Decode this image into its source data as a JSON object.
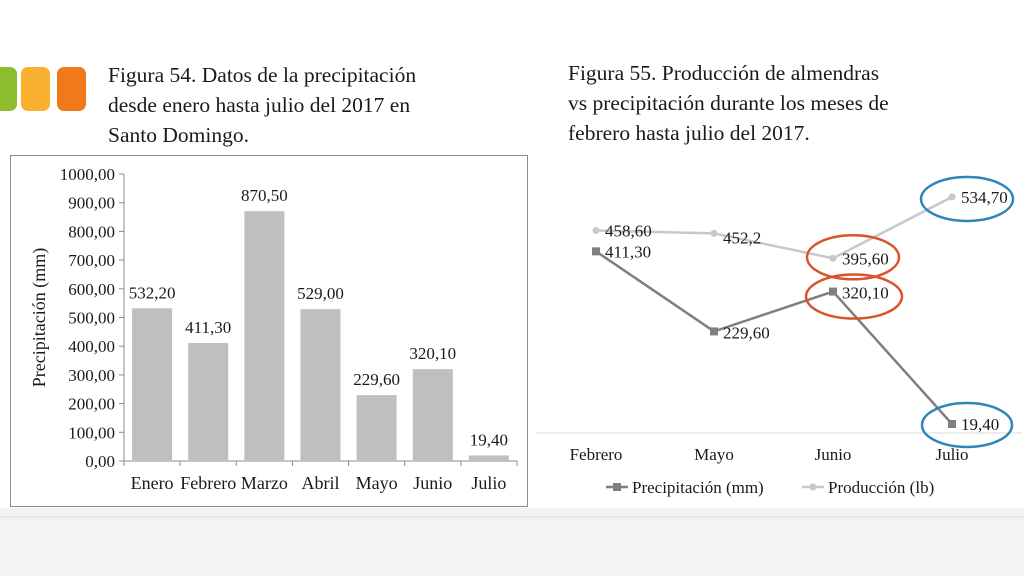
{
  "swatch_colors": [
    "#8dbd2c",
    "#f9b02f",
    "#f07a1a"
  ],
  "caption_left": [
    "Figura 54. Datos de la precipitación",
    "desde enero hasta julio del 2017 en",
    "Santo Domingo."
  ],
  "caption_right": [
    "Figura 55. Producción de almendras",
    "vs precipitación durante los meses de",
    "febrero hasta julio del 2017."
  ],
  "chart_data": [
    {
      "type": "bar",
      "title": "",
      "xlabel": "",
      "ylabel": "Precipitación (mm)",
      "categories": [
        "Enero",
        "Febrero",
        "Marzo",
        "Abril",
        "Mayo",
        "Junio",
        "Julio"
      ],
      "values": [
        532.2,
        411.3,
        870.5,
        529.0,
        229.6,
        320.1,
        19.4
      ],
      "value_labels": [
        "532,20",
        "411,30",
        "870,50",
        "529,00",
        "229,60",
        "320,10",
        "19,40"
      ],
      "ylim": [
        0,
        1000
      ],
      "yticks": [
        0,
        100,
        200,
        300,
        400,
        500,
        600,
        700,
        800,
        900,
        1000
      ],
      "ytick_labels": [
        "0,00",
        "100,00",
        "200,00",
        "300,00",
        "400,00",
        "500,00",
        "600,00",
        "700,00",
        "800,00",
        "900,00",
        "1000,00"
      ],
      "bar_color": "#bfbfbf",
      "grid": false
    },
    {
      "type": "line",
      "title": "",
      "categories": [
        "Febrero",
        "Mayo",
        "Junio",
        "Julio"
      ],
      "series": [
        {
          "name": "Precipitación (mm)",
          "values": [
            411.3,
            229.6,
            320.1,
            19.4
          ],
          "labels": [
            "411,30",
            "229,60",
            "320,10",
            "19,40"
          ],
          "marker": "square",
          "color": "#7f7f7f"
        },
        {
          "name": "Producción (lb)",
          "values": [
            458.6,
            452.2,
            395.6,
            534.7
          ],
          "labels": [
            "458,60",
            "452,2",
            "395,60",
            "534,70"
          ],
          "marker": "circle",
          "color": "#c8c8c8"
        }
      ],
      "legend": "bottom",
      "highlight_colors": {
        "orange": "#d9532b",
        "blue": "#2e86b8"
      },
      "grid": false
    }
  ]
}
